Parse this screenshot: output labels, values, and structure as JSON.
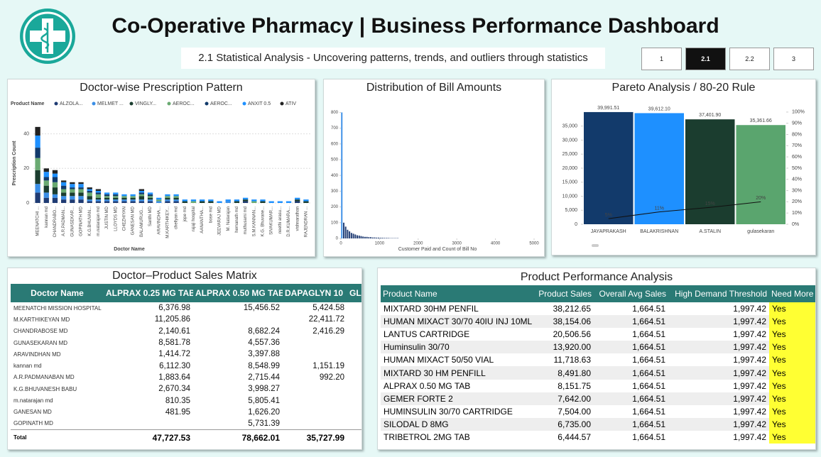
{
  "header": {
    "title": "Co-Operative Pharmacy | Business Performance Dashboard",
    "subtitle": "2.1 Statistical Analysis - Uncovering patterns, trends, and outliers through statistics",
    "nav": [
      "1",
      "2.1",
      "2.2",
      "3"
    ]
  },
  "chart_data": [
    {
      "type": "stacked_bar",
      "title": "Doctor-wise Prescription Pattern",
      "legend_title": "Product Name",
      "x_label": "Doctor Name",
      "y_label": "Prescription Count",
      "categories": [
        "MEENATCHI ...",
        "kannan md",
        "CHANDRABO...",
        "A.R.PADMAN...",
        "GUNASEKAR...",
        "GOPINATH MD",
        "K.G.BHUVAN...",
        "m.natarajan md",
        "JUSTIN MD",
        "LLOYDS MD",
        "CHEZHIYAN",
        "GANESAN MD",
        "BALAMURUG...",
        "Santhi MD",
        "ARAVINDHA...",
        "M.KARTHIKEY...",
        "chellyan md",
        "jope md",
        "rajaji hospital",
        "AANANTHA...",
        "bose md",
        "JEEVARAJ MD",
        "M. Natarajan",
        "hemanath md",
        "muthusami md",
        "S.M.KANNAN...",
        "K.G. Bhuvane...",
        "SIVAKUMAR...",
        "neethi arasu...",
        "D.R.KUMARA...",
        "vishnarathan",
        "RAJENDRAN ..."
      ],
      "series": [
        {
          "name": "ALZOLA...",
          "color": "#1f3b73",
          "values": [
            6,
            3,
            3,
            2,
            2,
            2,
            1,
            1,
            1,
            1,
            1,
            1,
            1,
            1,
            0,
            1,
            1,
            0,
            0,
            0,
            0,
            0,
            0,
            0,
            1,
            0,
            0,
            0,
            0,
            0,
            1,
            0
          ]
        },
        {
          "name": "MELMET ...",
          "color": "#3a8ee6",
          "values": [
            5,
            3,
            2,
            2,
            2,
            2,
            1,
            1,
            1,
            1,
            1,
            1,
            1,
            1,
            1,
            1,
            1,
            0,
            0,
            0,
            0,
            0,
            1,
            0,
            0,
            0,
            0,
            0,
            0,
            0,
            0,
            0
          ]
        },
        {
          "name": "VINGLY...",
          "color": "#1b3d2f",
          "values": [
            8,
            4,
            4,
            2,
            2,
            2,
            2,
            1,
            1,
            1,
            1,
            1,
            2,
            1,
            0,
            1,
            1,
            1,
            0,
            1,
            1,
            0,
            0,
            1,
            1,
            0,
            1,
            0,
            0,
            0,
            1,
            1
          ]
        },
        {
          "name": "AEROC...",
          "color": "#6aaa72",
          "values": [
            7,
            3,
            3,
            2,
            2,
            2,
            2,
            2,
            1,
            1,
            1,
            1,
            1,
            1,
            1,
            1,
            1,
            0,
            1,
            0,
            0,
            0,
            0,
            0,
            0,
            1,
            0,
            0,
            0,
            0,
            0,
            0
          ]
        },
        {
          "name": "AEROC...",
          "color": "#123a6b",
          "values": [
            6,
            2,
            3,
            2,
            1,
            1,
            1,
            1,
            1,
            1,
            0,
            0,
            1,
            1,
            0,
            0,
            0,
            0,
            0,
            0,
            0,
            0,
            0,
            0,
            0,
            0,
            0,
            0,
            0,
            0,
            0,
            0
          ]
        },
        {
          "name": "ANXIT 0.5",
          "color": "#1e90ff",
          "values": [
            7,
            3,
            2,
            2,
            2,
            2,
            1,
            1,
            1,
            1,
            1,
            1,
            1,
            1,
            1,
            1,
            1,
            1,
            1,
            1,
            1,
            1,
            1,
            1,
            1,
            1,
            1,
            1,
            1,
            1,
            1,
            1
          ]
        },
        {
          "name": "ATIV",
          "color": "#222222",
          "values": [
            5,
            2,
            2,
            1,
            1,
            1,
            1,
            1,
            0,
            0,
            0,
            0,
            1,
            0,
            0,
            0,
            0,
            0,
            0,
            0,
            0,
            0,
            0,
            0,
            0,
            0,
            0,
            0,
            0,
            0,
            0,
            0
          ]
        }
      ],
      "ylim": [
        0,
        46
      ],
      "yticks": [
        0,
        20,
        40
      ],
      "grid": true
    },
    {
      "type": "histogram",
      "title": "Distribution of Bill Amounts",
      "x_label": "Customer Paid and Count of Bill No",
      "bins": [
        0,
        50,
        100,
        150,
        200,
        250,
        300,
        350,
        400,
        450,
        500,
        550,
        600,
        650,
        700,
        750,
        800,
        850,
        900,
        950,
        1000,
        1050,
        1100,
        1150,
        1200,
        1250,
        1300,
        1350,
        1400,
        1450,
        1500
      ],
      "values": [
        800,
        100,
        75,
        55,
        45,
        35,
        30,
        25,
        20,
        18,
        15,
        12,
        10,
        10,
        8,
        8,
        6,
        6,
        5,
        5,
        4,
        4,
        3,
        3,
        3,
        2,
        2,
        2,
        2,
        2
      ],
      "color": "#3a8ee6",
      "xlim": [
        0,
        5000
      ],
      "xticks": [
        0,
        1000,
        2000,
        3000,
        4000,
        5000
      ],
      "ylim": [
        0,
        820
      ],
      "yticks": [
        0,
        100,
        200,
        300,
        400,
        500,
        600,
        700,
        800
      ]
    },
    {
      "type": "pareto",
      "title": "Pareto Analysis / 80-20 Rule",
      "categories": [
        "JAYAPRAKASH",
        "BALAKRISHNAN",
        "A.STALIN",
        "gulasekaran"
      ],
      "series": [
        {
          "type": "bar",
          "colors": [
            "#123a6b",
            "#1e90ff",
            "#1b3d2f",
            "#5aa56e"
          ],
          "values": [
            39991.51,
            39612.1,
            37401.9,
            35361.66
          ],
          "value_labels": [
            "39,991.51",
            "39,612.10",
            "37,401.90",
            "35,361.66"
          ]
        },
        {
          "type": "line",
          "axis": "y2",
          "color": "#111111",
          "values": [
            5,
            11,
            15,
            20
          ],
          "value_labels": [
            "5%",
            "11%",
            "15%",
            "20%"
          ]
        }
      ],
      "ylim": [
        0,
        42000
      ],
      "yticks": [
        0,
        {
          "value": 5000,
          "label": "5,000"
        },
        {
          "value": 10000,
          "label": "10,000"
        },
        {
          "value": 15000,
          "label": "15,000"
        },
        {
          "value": 20000,
          "label": "20,000"
        },
        {
          "value": 25000,
          "label": "25,000"
        },
        {
          "value": 30000,
          "label": "30,000"
        },
        {
          "value": 35000,
          "label": "35,000"
        }
      ],
      "y2lim": [
        0,
        105
      ],
      "y2ticks": [
        {
          "value": 0,
          "label": "0%"
        },
        {
          "value": 10,
          "label": "10%"
        },
        {
          "value": 20,
          "label": "20%"
        },
        {
          "value": 30,
          "label": "30%"
        },
        {
          "value": 40,
          "label": "40%"
        },
        {
          "value": 50,
          "label": "50%"
        },
        {
          "value": 60,
          "label": "60%"
        },
        {
          "value": 70,
          "label": "70%"
        },
        {
          "value": 80,
          "label": "80%"
        },
        {
          "value": 90,
          "label": "90%"
        },
        {
          "value": 100,
          "label": "100%"
        }
      ]
    }
  ],
  "matrix": {
    "title": "Doctor–Product Sales Matrix",
    "columns": [
      "Doctor Name",
      "ALPRAX 0.25 MG TAB",
      "ALPRAX 0.50 MG TAB",
      "DAPAGLYN 10",
      "GLUCO"
    ],
    "rows": [
      [
        "MEENATCHI MISSION HOSPITAL",
        "6,376.98",
        "15,456.52",
        "5,424.58",
        null
      ],
      [
        "M.KARTHIKEYAN MD",
        "11,205.86",
        null,
        "22,411.72",
        null
      ],
      [
        "CHANDRABOSE MD",
        "2,140.61",
        "8,682.24",
        "2,416.29",
        null
      ],
      [
        "GUNASEKARAN MD",
        "8,581.78",
        "4,557.36",
        null,
        null
      ],
      [
        "ARAVINDHAN MD",
        "1,414.72",
        "3,397.88",
        null,
        null
      ],
      [
        "kannan md",
        "6,112.30",
        "8,548.99",
        "1,151.19",
        null
      ],
      [
        "A.R.PADMANABAN MD",
        "1,883.64",
        "2,715.44",
        "992.20",
        null
      ],
      [
        "K.G.BHUVANESH BABU",
        "2,670.34",
        "3,998.27",
        null,
        null
      ],
      [
        "m.natarajan md",
        "810.35",
        "5,805.41",
        null,
        null
      ],
      [
        "GANESAN MD",
        "481.95",
        "1,626.20",
        null,
        null
      ],
      [
        "GOPINATH MD",
        null,
        "5,731.39",
        null,
        null
      ]
    ],
    "total": [
      "Total",
      "47,727.53",
      "78,662.01",
      "35,727.99",
      null
    ]
  },
  "products": {
    "title": "Product Performance Analysis",
    "columns": [
      "Product Name",
      "Product Sales",
      "Overall Avg Sales",
      "High Demand Threshold",
      "Need More St"
    ],
    "rows": [
      [
        "MIXTARD 30HM PENFIL",
        "38,212.65",
        "1,664.51",
        "1,997.42",
        "Yes"
      ],
      [
        "HUMAN MIXACT 30/70 40IU INJ 10ML",
        "38,154.06",
        "1,664.51",
        "1,997.42",
        "Yes"
      ],
      [
        "LANTUS CARTRIDGE",
        "20,506.56",
        "1,664.51",
        "1,997.42",
        "Yes"
      ],
      [
        "Huminsulin 30/70",
        "13,920.00",
        "1,664.51",
        "1,997.42",
        "Yes"
      ],
      [
        "HUMAN MIXACT 50/50 VIAL",
        "11,718.63",
        "1,664.51",
        "1,997.42",
        "Yes"
      ],
      [
        "MIXTARD 30 HM PENFILL",
        "8,491.80",
        "1,664.51",
        "1,997.42",
        "Yes"
      ],
      [
        "ALPRAX 0.50 MG TAB",
        "8,151.75",
        "1,664.51",
        "1,997.42",
        "Yes"
      ],
      [
        "GEMER FORTE 2",
        "7,642.00",
        "1,664.51",
        "1,997.42",
        "Yes"
      ],
      [
        "HUMINSULIN 30/70 CARTRIDGE",
        "7,504.00",
        "1,664.51",
        "1,997.42",
        "Yes"
      ],
      [
        "SILODAL D 8MG",
        "6,735.00",
        "1,664.51",
        "1,997.42",
        "Yes"
      ],
      [
        "TRIBETROL 2MG TAB",
        "6,444.57",
        "1,664.51",
        "1,997.42",
        "Yes"
      ]
    ]
  }
}
